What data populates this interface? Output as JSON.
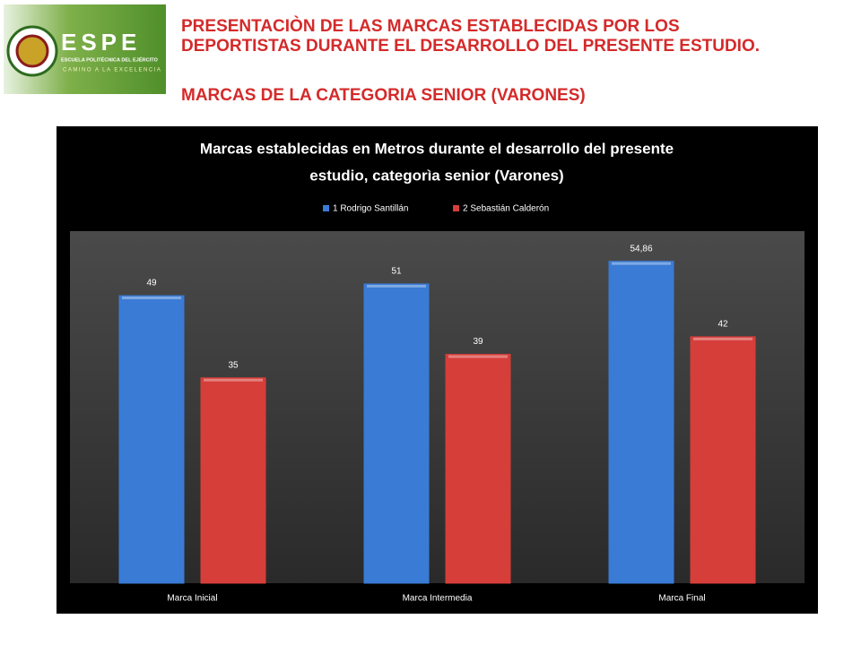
{
  "header": {
    "title_lines": [
      "PRESENTACIÒN DE LAS MARCAS ESTABLECIDAS POR LOS",
      "DEPORTISTAS DURANTE EL DESARROLLO DEL PRESENTE ESTUDIO."
    ],
    "subtitle": "MARCAS DE LA CATEGORIA SENIOR (VARONES)"
  },
  "logo": {
    "name": "ESPE",
    "institution": "ESCUELA POLITÉCNICA DEL EJÉRCITO",
    "motto": "CAMINO A LA EXCELENCIA"
  },
  "chart_data": {
    "type": "bar",
    "title_lines": [
      "Marcas establecidas en Metros durante el desarrollo del presente",
      "estudio, categorìa senior (Varones)"
    ],
    "categories": [
      "Marca Inicial",
      "Marca Intermedia",
      "Marca Final"
    ],
    "series": [
      {
        "name": "1 Rodrigo Santillán",
        "color": "#3a7bd5",
        "values": [
          49,
          51,
          54.86
        ],
        "value_labels": [
          "49",
          "51",
          "54,86"
        ]
      },
      {
        "name": "2 Sebastián Calderón",
        "color": "#d63e3a",
        "values": [
          35,
          39,
          42
        ]
      }
    ],
    "ylim": [
      0,
      60
    ],
    "legend": "top"
  }
}
